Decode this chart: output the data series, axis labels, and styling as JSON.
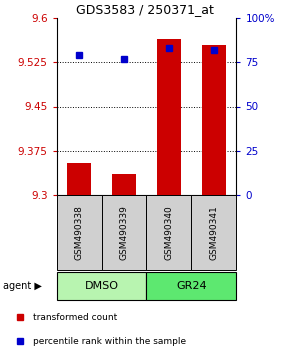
{
  "title": "GDS3583 / 250371_at",
  "samples": [
    "GSM490338",
    "GSM490339",
    "GSM490340",
    "GSM490341"
  ],
  "bar_values": [
    9.355,
    9.335,
    9.565,
    9.555
  ],
  "percentile_values": [
    79,
    77,
    83,
    82
  ],
  "ylim_left": [
    9.3,
    9.6
  ],
  "ylim_right": [
    0,
    100
  ],
  "yticks_left": [
    9.3,
    9.375,
    9.45,
    9.525,
    9.6
  ],
  "ytick_labels_left": [
    "9.3",
    "9.375",
    "9.45",
    "9.525",
    "9.6"
  ],
  "yticks_right": [
    0,
    25,
    50,
    75,
    100
  ],
  "ytick_labels_right": [
    "0",
    "25",
    "50",
    "75",
    "100%"
  ],
  "hlines": [
    9.375,
    9.45,
    9.525
  ],
  "bar_color": "#cc0000",
  "dot_color": "#0000cc",
  "bar_bottom": 9.3,
  "groups": [
    {
      "label": "DMSO",
      "samples": [
        0,
        1
      ],
      "color": "#b8f4b0"
    },
    {
      "label": "GR24",
      "samples": [
        2,
        3
      ],
      "color": "#5de870"
    }
  ],
  "sample_box_color": "#d0d0d0",
  "group_row_label": "agent",
  "legend_items": [
    {
      "color": "#cc0000",
      "label": "transformed count"
    },
    {
      "color": "#0000cc",
      "label": "percentile rank within the sample"
    }
  ],
  "xlabel_color": "#cc0000",
  "ylabel_right_color": "#0000cc"
}
